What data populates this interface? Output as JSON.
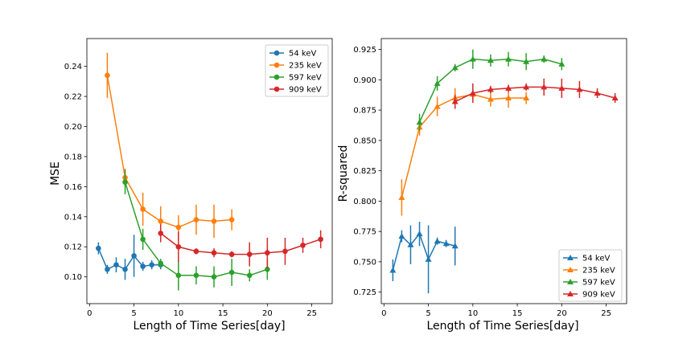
{
  "figure_title": "",
  "chart_data": [
    {
      "type": "line",
      "title": "",
      "xlabel": "Length of Time Series[day]",
      "ylabel": "MSE",
      "xlim": [
        -0.3,
        27.3
      ],
      "ylim": [
        0.0822,
        0.2585
      ],
      "xticks": [
        "0",
        "5",
        "10",
        "15",
        "20",
        "25"
      ],
      "yticks": [
        "0.10",
        "0.12",
        "0.14",
        "0.16",
        "0.18",
        "0.20",
        "0.22",
        "0.24"
      ],
      "marker": "circle",
      "legend_position": "top-right",
      "series": [
        {
          "name": "54 keV",
          "color": "#1f77b4",
          "x": [
            1,
            2,
            3,
            4,
            5,
            6,
            7,
            8
          ],
          "y": [
            0.119,
            0.105,
            0.108,
            0.105,
            0.114,
            0.107,
            0.108,
            0.108
          ],
          "err": [
            0.004,
            0.003,
            0.005,
            0.007,
            0.014,
            0.003,
            0.003,
            0.003
          ]
        },
        {
          "name": "235 keV",
          "color": "#ff7f0e",
          "x": [
            2,
            4,
            6,
            8,
            10,
            12,
            14,
            16
          ],
          "y": [
            0.234,
            0.166,
            0.145,
            0.137,
            0.133,
            0.138,
            0.137,
            0.138
          ],
          "err": [
            0.015,
            0.006,
            0.011,
            0.01,
            0.008,
            0.01,
            0.011,
            0.007
          ]
        },
        {
          "name": "597 keV",
          "color": "#2ca02c",
          "x": [
            4,
            6,
            8,
            10,
            12,
            14,
            16,
            18,
            20
          ],
          "y": [
            0.163,
            0.125,
            0.109,
            0.101,
            0.101,
            0.1,
            0.103,
            0.101,
            0.105
          ],
          "err": [
            0.008,
            0.007,
            0.003,
            0.01,
            0.006,
            0.007,
            0.009,
            0.004,
            0.007
          ]
        },
        {
          "name": "909 keV",
          "color": "#d62728",
          "x": [
            8,
            10,
            12,
            14,
            16,
            18,
            20,
            22,
            24,
            26
          ],
          "y": [
            0.129,
            0.12,
            0.117,
            0.116,
            0.115,
            0.115,
            0.116,
            0.117,
            0.121,
            0.125
          ],
          "err": [
            0.006,
            0.01,
            0.002,
            0.003,
            0.002,
            0.008,
            0.01,
            0.009,
            0.005,
            0.006
          ]
        }
      ]
    },
    {
      "type": "line",
      "title": "",
      "xlabel": "Length of Time Series[day]",
      "ylabel": "R-squared",
      "xlim": [
        -0.3,
        27.3
      ],
      "ylim": [
        0.7155,
        0.934
      ],
      "xticks": [
        "0",
        "5",
        "10",
        "15",
        "20",
        "25"
      ],
      "yticks": [
        "0.725",
        "0.750",
        "0.775",
        "0.800",
        "0.825",
        "0.850",
        "0.875",
        "0.900",
        "0.925"
      ],
      "marker": "triangle",
      "legend_position": "bottom-right",
      "series": [
        {
          "name": "54 keV",
          "color": "#1f77b4",
          "x": [
            1,
            2,
            3,
            4,
            5,
            6,
            7,
            8
          ],
          "y": [
            0.743,
            0.771,
            0.764,
            0.773,
            0.752,
            0.767,
            0.765,
            0.763
          ],
          "err": [
            0.009,
            0.005,
            0.016,
            0.01,
            0.028,
            0.003,
            0.003,
            0.016
          ]
        },
        {
          "name": "235 keV",
          "color": "#ff7f0e",
          "x": [
            2,
            4,
            6,
            8,
            10,
            12,
            14,
            16
          ],
          "y": [
            0.803,
            0.861,
            0.878,
            0.885,
            0.888,
            0.884,
            0.885,
            0.885
          ],
          "err": [
            0.015,
            0.007,
            0.008,
            0.008,
            0.005,
            0.006,
            0.008,
            0.005
          ]
        },
        {
          "name": "597 keV",
          "color": "#2ca02c",
          "x": [
            4,
            6,
            8,
            10,
            12,
            14,
            16,
            18,
            20
          ],
          "y": [
            0.865,
            0.897,
            0.91,
            0.917,
            0.916,
            0.917,
            0.915,
            0.917,
            0.913
          ],
          "err": [
            0.007,
            0.006,
            0.003,
            0.008,
            0.005,
            0.006,
            0.007,
            0.003,
            0.005
          ]
        },
        {
          "name": "909 keV",
          "color": "#d62728",
          "x": [
            8,
            10,
            12,
            14,
            16,
            18,
            20,
            22,
            24,
            26
          ],
          "y": [
            0.882,
            0.889,
            0.892,
            0.893,
            0.894,
            0.894,
            0.893,
            0.892,
            0.889,
            0.885
          ],
          "err": [
            0.006,
            0.008,
            0.003,
            0.003,
            0.003,
            0.007,
            0.008,
            0.007,
            0.004,
            0.004
          ]
        }
      ]
    }
  ]
}
